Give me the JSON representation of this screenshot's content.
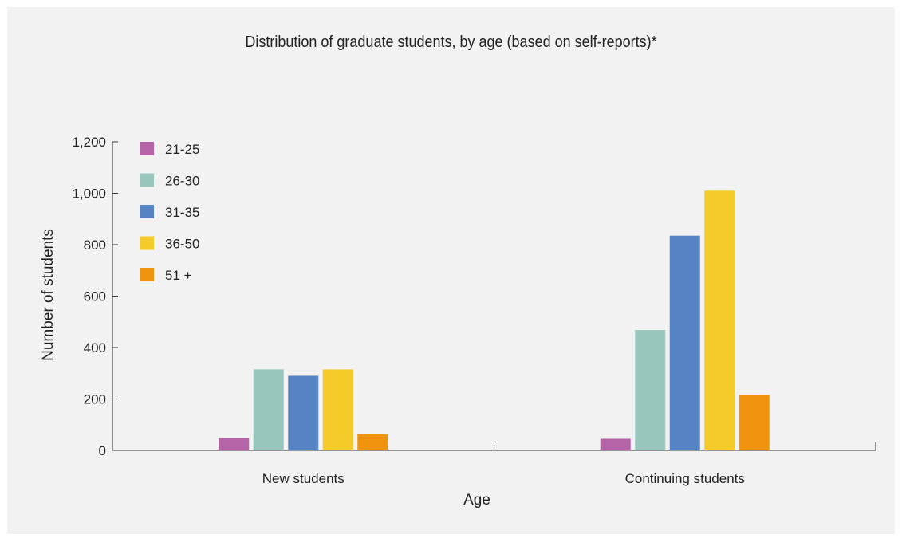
{
  "chart_data": {
    "type": "bar",
    "title": "Distribution of graduate students, by age (based on self-reports)*",
    "xlabel": "Age",
    "ylabel": "Number of students",
    "categories": [
      "New students",
      "Continuing students"
    ],
    "ylim": [
      0,
      1200
    ],
    "yticks": [
      0,
      200,
      400,
      600,
      800,
      1000,
      1200
    ],
    "ytick_labels": [
      "0",
      "200",
      "400",
      "600",
      "800",
      "1,000",
      "1,200"
    ],
    "grid": false,
    "legend_position": "top-left",
    "series": [
      {
        "name": "21-25",
        "color": "#b565a7",
        "values": [
          48,
          45
        ]
      },
      {
        "name": "26-30",
        "color": "#98c6bc",
        "values": [
          315,
          468
        ]
      },
      {
        "name": "31-35",
        "color": "#5583c4",
        "values": [
          290,
          835
        ]
      },
      {
        "name": "36-50",
        "color": "#f5cb2a",
        "values": [
          315,
          1010
        ]
      },
      {
        "name": "51 +",
        "color": "#f0930f",
        "values": [
          62,
          215
        ]
      }
    ]
  }
}
